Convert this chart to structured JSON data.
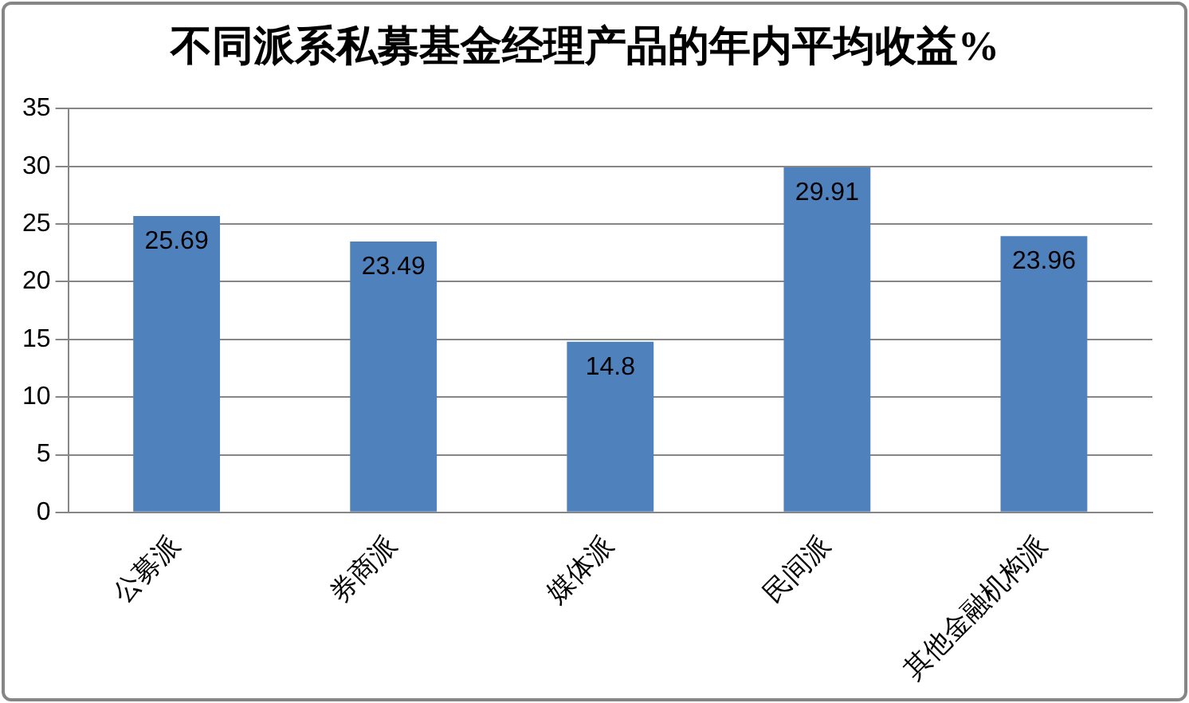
{
  "chart_data": {
    "type": "bar",
    "title": "不同派系私募基金经理产品的年内平均收益%",
    "categories": [
      "公募派",
      "券商派",
      "媒体派",
      "民间派",
      "其他金融机构派"
    ],
    "values": [
      25.69,
      23.49,
      14.8,
      29.91,
      23.96
    ],
    "color": "#4f81bd",
    "ylim": [
      0,
      35
    ],
    "yticks": [
      0,
      5,
      10,
      15,
      20,
      25,
      30,
      35
    ],
    "grid": "y",
    "data_labels": true
  }
}
